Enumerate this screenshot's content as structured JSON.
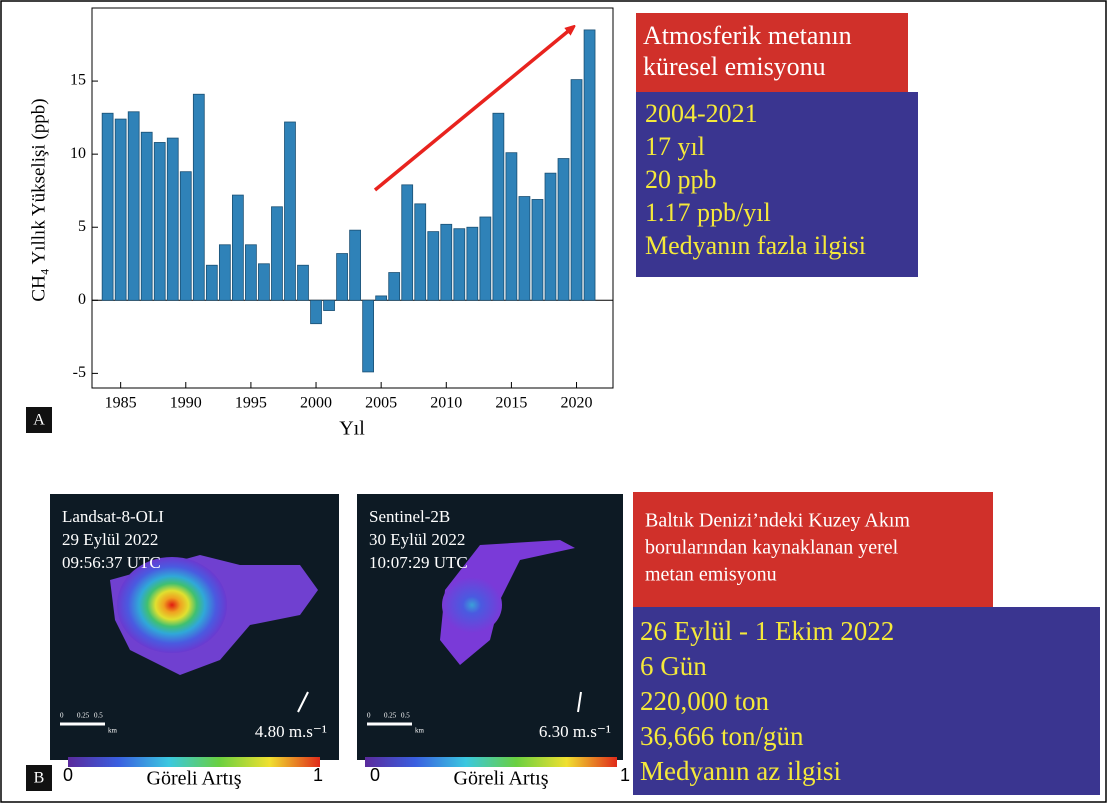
{
  "chart_data": {
    "type": "bar",
    "x_label": "Yıl",
    "y_label": "CH₄ Yıllık Yükselişi (ppb)",
    "panel_label": "A",
    "x": [
      1984,
      1985,
      1986,
      1987,
      1988,
      1989,
      1990,
      1991,
      1992,
      1993,
      1994,
      1995,
      1996,
      1997,
      1998,
      1999,
      2000,
      2001,
      2002,
      2003,
      2004,
      2005,
      2006,
      2007,
      2008,
      2009,
      2010,
      2011,
      2012,
      2013,
      2014,
      2015,
      2016,
      2017,
      2018,
      2019,
      2020,
      2021
    ],
    "values": [
      12.8,
      12.4,
      12.9,
      11.5,
      10.8,
      11.1,
      8.8,
      14.1,
      2.4,
      3.8,
      7.2,
      3.8,
      2.5,
      6.4,
      12.2,
      2.4,
      -1.6,
      -0.7,
      3.2,
      4.8,
      -4.9,
      0.3,
      1.9,
      7.9,
      6.6,
      4.7,
      5.2,
      4.9,
      5.0,
      5.7,
      12.8,
      10.1,
      7.1,
      6.9,
      8.7,
      9.7,
      15.1,
      18.5
    ],
    "color": "#2f82b8",
    "xlim": [
      1982.8,
      2022.8
    ],
    "ylim": [
      -6,
      20
    ],
    "xticks": [
      1985,
      1990,
      1995,
      2000,
      2005,
      2010,
      2015,
      2020
    ],
    "yticks": [
      -5,
      0,
      5,
      10,
      15
    ]
  },
  "notes_a": {
    "title_lines": [
      "Atmosferik metanın",
      "küresel emisyonu"
    ],
    "facts": [
      "2004-2021",
      "17 yıl",
      "20 ppb",
      "1.17 ppb/yıl",
      "Medyanın fazla ilgisi"
    ]
  },
  "panel_b": {
    "label": "B",
    "images": [
      {
        "lines": [
          "Landsat-8-OLI",
          "29 Eylül 2022",
          "09:56:37 UTC"
        ],
        "wind": "4.80 m.s⁻¹",
        "scale": [
          "0",
          "0.25",
          "0.5"
        ],
        "scale_unit": "km",
        "colorbar": {
          "min": "0",
          "label": "Göreli Artış",
          "max": "1"
        }
      },
      {
        "lines": [
          "Sentinel-2B",
          "30 Eylül 2022",
          "10:07:29 UTC"
        ],
        "wind": "6.30 m.s⁻¹",
        "scale": [
          "0",
          "0.25",
          "0.5"
        ],
        "scale_unit": "km",
        "colorbar": {
          "min": "0",
          "label": "Göreli Artış",
          "max": "1"
        }
      }
    ],
    "title_lines": [
      "Baltık Denizi’ndeki Kuzey Akım",
      "borularından kaynaklanan yerel",
      "metan emisyonu"
    ],
    "facts": [
      "26 Eylül - 1 Ekim 2022",
      "6 Gün",
      "220,000 ton",
      "36,666 ton/gün",
      "Medyanın az ilgisi"
    ]
  }
}
